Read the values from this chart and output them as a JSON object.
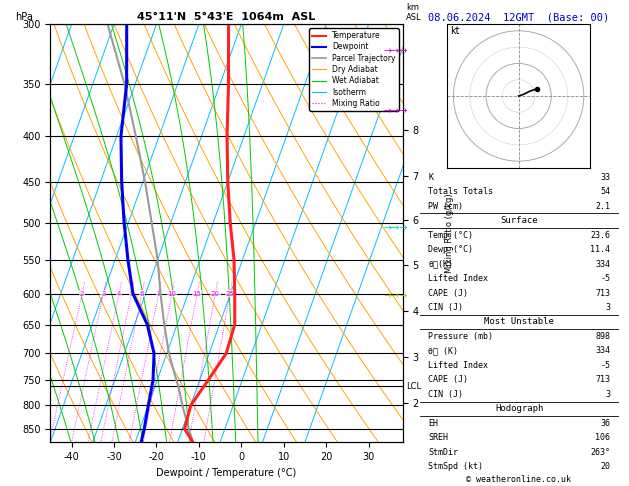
{
  "title_left": "45°11'N  5°43'E  1064m  ASL",
  "title_right": "08.06.2024  12GMT  (Base: 00)",
  "xlabel": "Dewpoint / Temperature (°C)",
  "ylabel_left": "hPa",
  "pressure_levels": [
    300,
    350,
    400,
    450,
    500,
    550,
    600,
    650,
    700,
    750,
    800,
    850
  ],
  "pressure_min": 300,
  "pressure_max": 880,
  "temp_min": -45,
  "temp_max": 38,
  "skew_factor": 35.0,
  "isotherm_color": "#00bfff",
  "dry_adiabat_color": "#ffa500",
  "wet_adiabat_color": "#00cc00",
  "mixing_ratio_color": "#ff00ff",
  "temp_profile_color": "#ff2222",
  "dewp_profile_color": "#0000ee",
  "parcel_color": "#999999",
  "background_color": "#ffffff",
  "km_ticks": [
    2,
    3,
    4,
    5,
    6,
    7,
    8
  ],
  "km_pressures": [
    796,
    706,
    628,
    558,
    497,
    443,
    394
  ],
  "lcl_pressure": 762,
  "mixing_ratio_values": [
    1,
    2,
    3,
    4,
    5,
    6,
    8,
    10,
    15,
    20,
    25
  ],
  "temp_data": {
    "pressure": [
      880,
      850,
      800,
      750,
      700,
      650,
      600,
      550,
      500,
      450,
      400,
      350,
      300
    ],
    "temperature": [
      23.6,
      20.5,
      20.0,
      22.0,
      24.0,
      23.6,
      21.0,
      18.0,
      14.0,
      10.0,
      6.0,
      2.0,
      -3.0
    ]
  },
  "dewp_data": {
    "pressure": [
      880,
      850,
      800,
      750,
      700,
      650,
      600,
      550,
      500,
      450,
      400,
      350,
      300
    ],
    "temperature": [
      11.4,
      11.0,
      10.0,
      9.0,
      7.0,
      3.0,
      -3.0,
      -7.0,
      -11.0,
      -15.0,
      -19.0,
      -22.0,
      -27.0
    ]
  },
  "parcel_data": {
    "pressure": [
      880,
      850,
      800,
      762,
      750,
      700,
      650,
      600,
      550,
      500,
      450,
      400,
      350,
      300
    ],
    "temperature": [
      23.6,
      21.5,
      18.0,
      15.5,
      14.5,
      10.5,
      7.0,
      3.5,
      0.0,
      -4.5,
      -9.5,
      -15.5,
      -22.5,
      -31.5
    ]
  },
  "hodograph_u": [
    0.0,
    1.5,
    3.5,
    5.0,
    5.5
  ],
  "hodograph_v": [
    0.0,
    0.5,
    1.5,
    2.0,
    2.2
  ],
  "copyright": "© weatheronline.co.uk"
}
